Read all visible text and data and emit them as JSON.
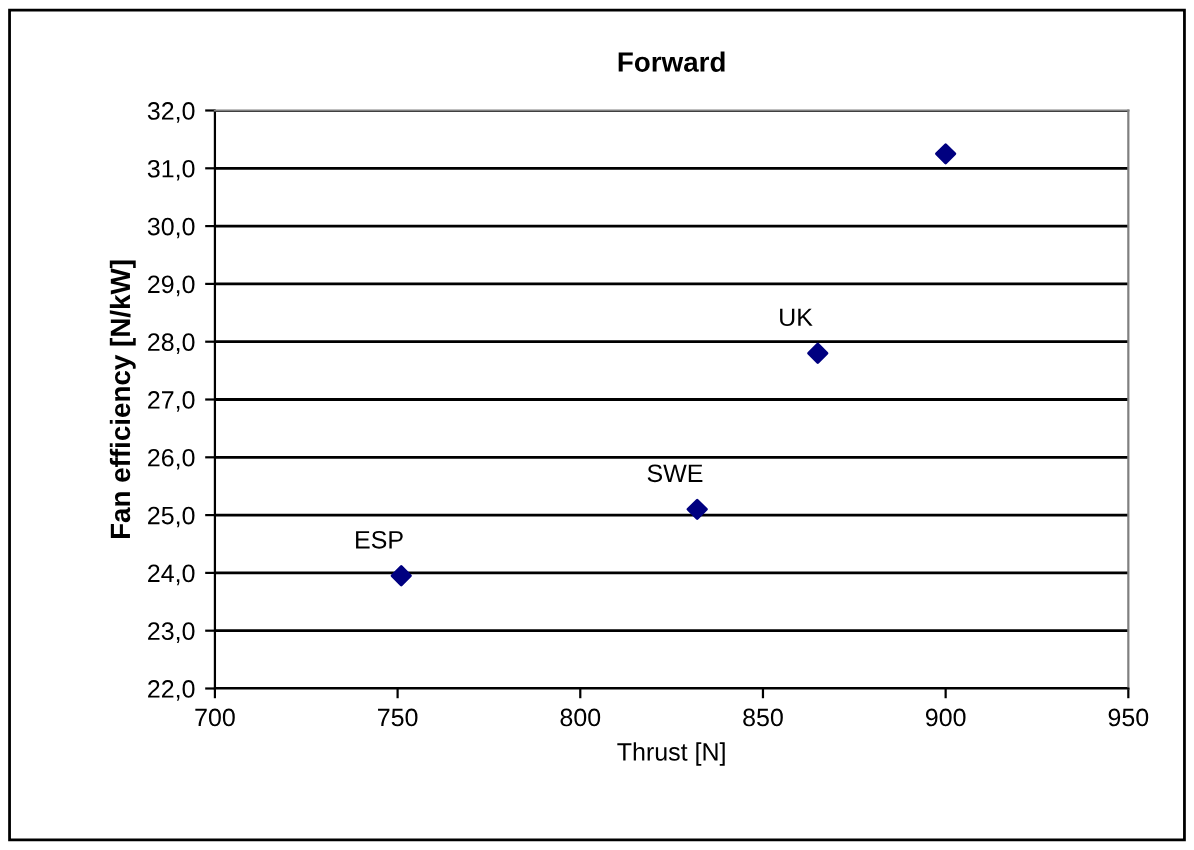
{
  "chart_data": {
    "type": "scatter",
    "title": "Forward",
    "xlabel": "Thrust [N]",
    "ylabel": "Fan efficiency [N/kW]",
    "x": [
      751,
      832,
      865,
      900
    ],
    "series": [
      {
        "color": "#000080",
        "values": [
          23.95,
          25.1,
          27.8,
          31.25
        ]
      }
    ],
    "marker": "diamond",
    "grid": "y",
    "xlim": [
      700,
      950
    ],
    "xticks": [
      700,
      750,
      800,
      850,
      900,
      950
    ],
    "ylim": [
      22,
      32
    ],
    "yticks": [
      {
        "value": 22,
        "label": "22,0"
      },
      {
        "value": 23,
        "label": "23,0"
      },
      {
        "value": 24,
        "label": "24,0"
      },
      {
        "value": 25,
        "label": "25,0"
      },
      {
        "value": 26,
        "label": "26,0"
      },
      {
        "value": 27,
        "label": "27,0"
      },
      {
        "value": 28,
        "label": "28,0"
      },
      {
        "value": 29,
        "label": "29,0"
      },
      {
        "value": 30,
        "label": "30,0"
      },
      {
        "value": 31,
        "label": "31,0"
      },
      {
        "value": 32,
        "label": "32,0"
      }
    ],
    "annotations": [
      {
        "text": "ESP",
        "x": 751,
        "y": 23.95
      },
      {
        "text": "SWE",
        "x": 832,
        "y": 25.1
      },
      {
        "text": "UK",
        "x": 865,
        "y": 27.8
      }
    ]
  }
}
